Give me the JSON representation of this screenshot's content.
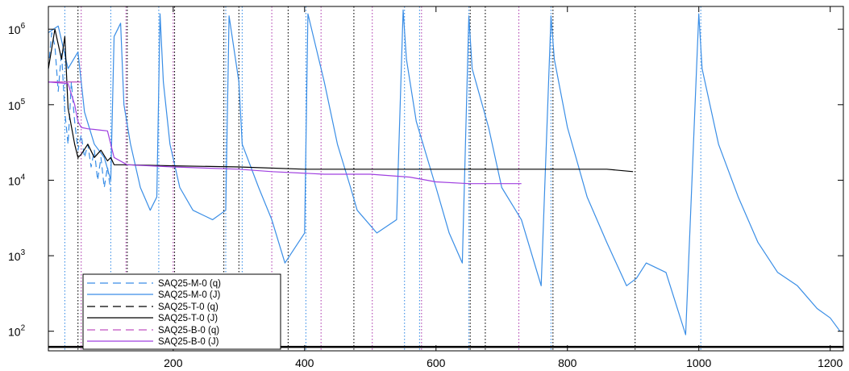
{
  "chart_data": {
    "type": "line",
    "title": "",
    "xlabel": "",
    "ylabel": "",
    "xlim": [
      10,
      1220
    ],
    "ylim": [
      55,
      2000000
    ],
    "yscale": "log",
    "xticks": [
      200,
      400,
      600,
      800,
      1000,
      1200
    ],
    "yticks": [
      {
        "base": "10",
        "exp": "2",
        "value": 100
      },
      {
        "base": "10",
        "exp": "3",
        "value": 1000
      },
      {
        "base": "10",
        "exp": "4",
        "value": 10000
      },
      {
        "base": "10",
        "exp": "5",
        "value": 100000
      },
      {
        "base": "10",
        "exp": "6",
        "value": 1000000
      }
    ],
    "grid": false,
    "legend_position": "bottom-left",
    "series": [
      {
        "name": "SAQ25-M-0 (q)",
        "color": "#3a8ee6",
        "style": "dashed",
        "x": [
          10,
          15,
          20,
          25,
          30,
          35,
          40,
          45,
          50,
          55,
          60,
          65,
          70,
          75,
          80,
          85,
          90,
          95,
          100,
          105
        ],
        "y": [
          300000,
          900000,
          600000,
          150000,
          500000,
          80000,
          30000,
          200000,
          60000,
          25000,
          40000,
          20000,
          30000,
          15000,
          25000,
          10000,
          20000,
          8000,
          15000,
          7000
        ]
      },
      {
        "name": "SAQ25-M-0 (J)",
        "color": "#3a8ee6",
        "style": "solid",
        "x": [
          10,
          25,
          40,
          55,
          65,
          80,
          95,
          105,
          110,
          120,
          125,
          135,
          150,
          165,
          175,
          180,
          185,
          195,
          210,
          230,
          260,
          280,
          285,
          300,
          305,
          330,
          350,
          370,
          400,
          405,
          430,
          450,
          470,
          480,
          510,
          540,
          550,
          555,
          570,
          600,
          620,
          640,
          650,
          655,
          680,
          700,
          730,
          760,
          775,
          780,
          800,
          830,
          860,
          890,
          905,
          920,
          950,
          980,
          1000,
          1005,
          1030,
          1060,
          1090,
          1120,
          1150,
          1180,
          1200,
          1215
        ],
        "y": [
          900000,
          1100000,
          300000,
          500000,
          80000,
          30000,
          20000,
          10000,
          800000,
          1200000,
          100000,
          30000,
          8000,
          4000,
          6000,
          1600000,
          200000,
          30000,
          8000,
          4000,
          3000,
          4000,
          1500000,
          200000,
          30000,
          8000,
          3000,
          800,
          2000,
          1600000,
          200000,
          30000,
          8000,
          4000,
          2000,
          3000,
          1800000,
          400000,
          60000,
          8000,
          2000,
          800,
          1500000,
          300000,
          50000,
          8000,
          3000,
          400,
          1500000,
          400000,
          50000,
          6000,
          1500,
          400,
          500,
          800,
          600,
          90,
          1600000,
          300000,
          30000,
          6000,
          1500,
          600,
          400,
          200,
          150,
          100
        ]
      },
      {
        "name": "SAQ25-T-0 (q)",
        "color": "#000000",
        "style": "dashed",
        "x": [
          10,
          1220
        ],
        "y": [
          62,
          62
        ]
      },
      {
        "name": "SAQ25-T-0 (J)",
        "color": "#000000",
        "style": "solid",
        "x": [
          10,
          20,
          30,
          35,
          40,
          50,
          55,
          60,
          70,
          80,
          90,
          100,
          105,
          110,
          130,
          200,
          300,
          400,
          500,
          600,
          700,
          800,
          860,
          900
        ],
        "y": [
          300000,
          1000000,
          400000,
          800000,
          90000,
          30000,
          20000,
          22000,
          30000,
          20000,
          25000,
          18000,
          20000,
          16000,
          16000,
          15500,
          15000,
          14000,
          14000,
          14000,
          14000,
          14000,
          14000,
          13000
        ]
      },
      {
        "name": "SAQ25-B-0 (q)",
        "color": "#c050c0",
        "style": "dashed",
        "x": [
          10,
          60
        ],
        "y": [
          200000,
          200000
        ]
      },
      {
        "name": "SAQ25-B-0 (J)",
        "color": "#a040e0",
        "style": "solid",
        "x": [
          10,
          40,
          50,
          55,
          60,
          70,
          80,
          100,
          110,
          130,
          200,
          300,
          350,
          430,
          500,
          560,
          600,
          650,
          700,
          730
        ],
        "y": [
          200000,
          190000,
          100000,
          60000,
          50000,
          48000,
          47000,
          45000,
          20000,
          16000,
          15000,
          14000,
          13000,
          12000,
          12000,
          11000,
          9500,
          9000,
          9000,
          9000
        ]
      }
    ],
    "vlines": [
      {
        "x": 35,
        "color": "#3a8ee6"
      },
      {
        "x": 55,
        "color": "#000000"
      },
      {
        "x": 60,
        "color": "#b040b0"
      },
      {
        "x": 105,
        "color": "#3a8ee6"
      },
      {
        "x": 128,
        "color": "#b040b0"
      },
      {
        "x": 130,
        "color": "#000000"
      },
      {
        "x": 178,
        "color": "#3a8ee6"
      },
      {
        "x": 200,
        "color": "#b040b0"
      },
      {
        "x": 202,
        "color": "#000000"
      },
      {
        "x": 277,
        "color": "#000000"
      },
      {
        "x": 280,
        "color": "#3a8ee6"
      },
      {
        "x": 300,
        "color": "#000000"
      },
      {
        "x": 305,
        "color": "#3a8ee6"
      },
      {
        "x": 350,
        "color": "#b040b0"
      },
      {
        "x": 375,
        "color": "#000000"
      },
      {
        "x": 402,
        "color": "#3a8ee6"
      },
      {
        "x": 425,
        "color": "#b040b0"
      },
      {
        "x": 475,
        "color": "#000000"
      },
      {
        "x": 503,
        "color": "#b040b0"
      },
      {
        "x": 552,
        "color": "#3a8ee6"
      },
      {
        "x": 575,
        "color": "#3a8ee6"
      },
      {
        "x": 578,
        "color": "#b040b0"
      },
      {
        "x": 650,
        "color": "#3a8ee6"
      },
      {
        "x": 652,
        "color": "#000000"
      },
      {
        "x": 675,
        "color": "#000000"
      },
      {
        "x": 726,
        "color": "#b040b0"
      },
      {
        "x": 775,
        "color": "#3a8ee6"
      },
      {
        "x": 778,
        "color": "#000000"
      },
      {
        "x": 903,
        "color": "#000000"
      },
      {
        "x": 1003,
        "color": "#3a8ee6"
      }
    ]
  }
}
